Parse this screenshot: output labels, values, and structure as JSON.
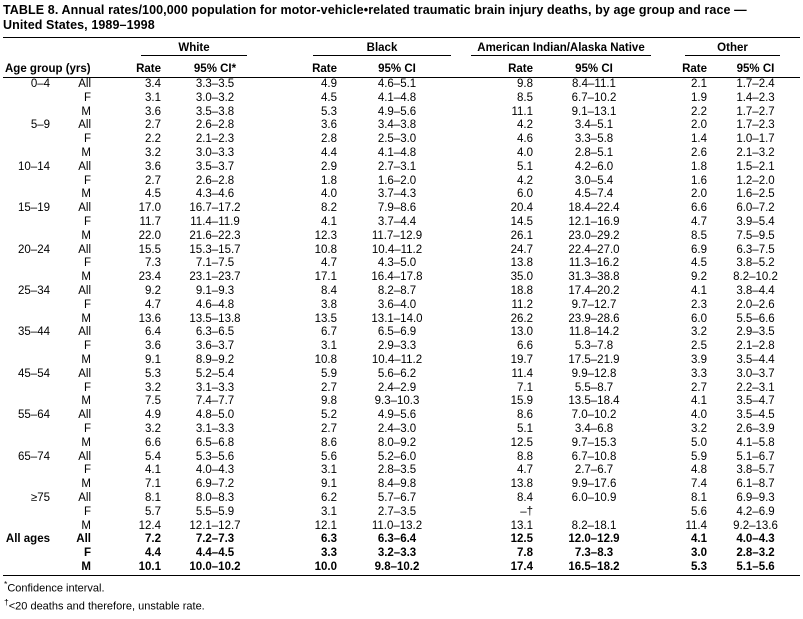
{
  "title": {
    "line1": "TABLE 8. Annual rates/100,000 population for motor-vehicle•related traumatic brain injury deaths, by age group and race —",
    "line2": "United States, 1989–1998"
  },
  "table": {
    "age_header": "Age group (yrs)",
    "col_groups": [
      {
        "label": "White",
        "sub": [
          "Rate",
          "95% CI*"
        ]
      },
      {
        "label": "Black",
        "sub": [
          "Rate",
          "95% CI"
        ]
      },
      {
        "label": "American Indian/Alaska Native",
        "sub": [
          "Rate",
          "95% CI"
        ]
      },
      {
        "label": "Other",
        "sub": [
          "Rate",
          "95% CI"
        ]
      }
    ],
    "rows": [
      {
        "age": "0–4",
        "sex": "All",
        "bold": false,
        "cells": [
          "3.4",
          "3.3–3.5",
          "4.9",
          "4.6–5.1",
          "9.8",
          "8.4–11.1",
          "2.1",
          "1.7–2.4"
        ]
      },
      {
        "age": "",
        "sex": "F",
        "bold": false,
        "cells": [
          "3.1",
          "3.0–3.2",
          "4.5",
          "4.1–4.8",
          "8.5",
          "6.7–10.2",
          "1.9",
          "1.4–2.3"
        ]
      },
      {
        "age": "",
        "sex": "M",
        "bold": false,
        "cells": [
          "3.6",
          "3.5–3.8",
          "5.3",
          "4.9–5.6",
          "11.1",
          "9.1–13.1",
          "2.2",
          "1.7–2.7"
        ]
      },
      {
        "age": "5–9",
        "sex": "All",
        "bold": false,
        "cells": [
          "2.7",
          "2.6–2.8",
          "3.6",
          "3.4–3.8",
          "4.2",
          "3.4–5.1",
          "2.0",
          "1.7–2.3"
        ]
      },
      {
        "age": "",
        "sex": "F",
        "bold": false,
        "cells": [
          "2.2",
          "2.1–2.3",
          "2.8",
          "2.5–3.0",
          "4.6",
          "3.3–5.8",
          "1.4",
          "1.0–1.7"
        ]
      },
      {
        "age": "",
        "sex": "M",
        "bold": false,
        "cells": [
          "3.2",
          "3.0–3.3",
          "4.4",
          "4.1–4.8",
          "4.0",
          "2.8–5.1",
          "2.6",
          "2.1–3.2"
        ]
      },
      {
        "age": "10–14",
        "sex": "All",
        "bold": false,
        "cells": [
          "3.6",
          "3.5–3.7",
          "2.9",
          "2.7–3.1",
          "5.1",
          "4.2–6.0",
          "1.8",
          "1.5–2.1"
        ]
      },
      {
        "age": "",
        "sex": "F",
        "bold": false,
        "cells": [
          "2.7",
          "2.6–2.8",
          "1.8",
          "1.6–2.0",
          "4.2",
          "3.0–5.4",
          "1.6",
          "1.2–2.0"
        ]
      },
      {
        "age": "",
        "sex": "M",
        "bold": false,
        "cells": [
          "4.5",
          "4.3–4.6",
          "4.0",
          "3.7–4.3",
          "6.0",
          "4.5–7.4",
          "2.0",
          "1.6–2.5"
        ]
      },
      {
        "age": "15–19",
        "sex": "All",
        "bold": false,
        "cells": [
          "17.0",
          "16.7–17.2",
          "8.2",
          "7.9–8.6",
          "20.4",
          "18.4–22.4",
          "6.6",
          "6.0–7.2"
        ]
      },
      {
        "age": "",
        "sex": "F",
        "bold": false,
        "cells": [
          "11.7",
          "11.4–11.9",
          "4.1",
          "3.7–4.4",
          "14.5",
          "12.1–16.9",
          "4.7",
          "3.9–5.4"
        ]
      },
      {
        "age": "",
        "sex": "M",
        "bold": false,
        "cells": [
          "22.0",
          "21.6–22.3",
          "12.3",
          "11.7–12.9",
          "26.1",
          "23.0–29.2",
          "8.5",
          "7.5–9.5"
        ]
      },
      {
        "age": "20–24",
        "sex": "All",
        "bold": false,
        "cells": [
          "15.5",
          "15.3–15.7",
          "10.8",
          "10.4–11.2",
          "24.7",
          "22.4–27.0",
          "6.9",
          "6.3–7.5"
        ]
      },
      {
        "age": "",
        "sex": "F",
        "bold": false,
        "cells": [
          "7.3",
          "7.1–7.5",
          "4.7",
          "4.3–5.0",
          "13.8",
          "11.3–16.2",
          "4.5",
          "3.8–5.2"
        ]
      },
      {
        "age": "",
        "sex": "M",
        "bold": false,
        "cells": [
          "23.4",
          "23.1–23.7",
          "17.1",
          "16.4–17.8",
          "35.0",
          "31.3–38.8",
          "9.2",
          "8.2–10.2"
        ]
      },
      {
        "age": "25–34",
        "sex": "All",
        "bold": false,
        "cells": [
          "9.2",
          "9.1–9.3",
          "8.4",
          "8.2–8.7",
          "18.8",
          "17.4–20.2",
          "4.1",
          "3.8–4.4"
        ]
      },
      {
        "age": "",
        "sex": "F",
        "bold": false,
        "cells": [
          "4.7",
          "4.6–4.8",
          "3.8",
          "3.6–4.0",
          "11.2",
          "9.7–12.7",
          "2.3",
          "2.0–2.6"
        ]
      },
      {
        "age": "",
        "sex": "M",
        "bold": false,
        "cells": [
          "13.6",
          "13.5–13.8",
          "13.5",
          "13.1–14.0",
          "26.2",
          "23.9–28.6",
          "6.0",
          "5.5–6.6"
        ]
      },
      {
        "age": "35–44",
        "sex": "All",
        "bold": false,
        "cells": [
          "6.4",
          "6.3–6.5",
          "6.7",
          "6.5–6.9",
          "13.0",
          "11.8–14.2",
          "3.2",
          "2.9–3.5"
        ]
      },
      {
        "age": "",
        "sex": "F",
        "bold": false,
        "cells": [
          "3.6",
          "3.6–3.7",
          "3.1",
          "2.9–3.3",
          "6.6",
          "5.3–7.8",
          "2.5",
          "2.1–2.8"
        ]
      },
      {
        "age": "",
        "sex": "M",
        "bold": false,
        "cells": [
          "9.1",
          "8.9–9.2",
          "10.8",
          "10.4–11.2",
          "19.7",
          "17.5–21.9",
          "3.9",
          "3.5–4.4"
        ]
      },
      {
        "age": "45–54",
        "sex": "All",
        "bold": false,
        "cells": [
          "5.3",
          "5.2–5.4",
          "5.9",
          "5.6–6.2",
          "11.4",
          "9.9–12.8",
          "3.3",
          "3.0–3.7"
        ]
      },
      {
        "age": "",
        "sex": "F",
        "bold": false,
        "cells": [
          "3.2",
          "3.1–3.3",
          "2.7",
          "2.4–2.9",
          "7.1",
          "5.5–8.7",
          "2.7",
          "2.2–3.1"
        ]
      },
      {
        "age": "",
        "sex": "M",
        "bold": false,
        "cells": [
          "7.5",
          "7.4–7.7",
          "9.8",
          "9.3–10.3",
          "15.9",
          "13.5–18.4",
          "4.1",
          "3.5–4.7"
        ]
      },
      {
        "age": "55–64",
        "sex": "All",
        "bold": false,
        "cells": [
          "4.9",
          "4.8–5.0",
          "5.2",
          "4.9–5.6",
          "8.6",
          "7.0–10.2",
          "4.0",
          "3.5–4.5"
        ]
      },
      {
        "age": "",
        "sex": "F",
        "bold": false,
        "cells": [
          "3.2",
          "3.1–3.3",
          "2.7",
          "2.4–3.0",
          "5.1",
          "3.4–6.8",
          "3.2",
          "2.6–3.9"
        ]
      },
      {
        "age": "",
        "sex": "M",
        "bold": false,
        "cells": [
          "6.6",
          "6.5–6.8",
          "8.6",
          "8.0–9.2",
          "12.5",
          "9.7–15.3",
          "5.0",
          "4.1–5.8"
        ]
      },
      {
        "age": "65–74",
        "sex": "All",
        "bold": false,
        "cells": [
          "5.4",
          "5.3–5.6",
          "5.6",
          "5.2–6.0",
          "8.8",
          "6.7–10.8",
          "5.9",
          "5.1–6.7"
        ]
      },
      {
        "age": "",
        "sex": "F",
        "bold": false,
        "cells": [
          "4.1",
          "4.0–4.3",
          "3.1",
          "2.8–3.5",
          "4.7",
          "2.7–6.7",
          "4.8",
          "3.8–5.7"
        ]
      },
      {
        "age": "",
        "sex": "M",
        "bold": false,
        "cells": [
          "7.1",
          "6.9–7.2",
          "9.1",
          "8.4–9.8",
          "13.8",
          "9.9–17.6",
          "7.4",
          "6.1–8.7"
        ]
      },
      {
        "age": "≥75",
        "sex": "All",
        "bold": false,
        "cells": [
          "8.1",
          "8.0–8.3",
          "6.2",
          "5.7–6.7",
          "8.4",
          "6.0–10.9",
          "8.1",
          "6.9–9.3"
        ]
      },
      {
        "age": "",
        "sex": "F",
        "bold": false,
        "cells": [
          "5.7",
          "5.5–5.9",
          "3.1",
          "2.7–3.5",
          "–†",
          "",
          "5.6",
          "4.2–6.9"
        ]
      },
      {
        "age": "",
        "sex": "M",
        "bold": false,
        "cells": [
          "12.4",
          "12.1–12.7",
          "12.1",
          "11.0–13.2",
          "13.1",
          "8.2–18.1",
          "11.4",
          "9.2–13.6"
        ]
      },
      {
        "age": "All ages",
        "sex": "All",
        "bold": true,
        "cells": [
          "7.2",
          "7.2–7.3",
          "6.3",
          "6.3–6.4",
          "12.5",
          "12.0–12.9",
          "4.1",
          "4.0–4.3"
        ]
      },
      {
        "age": "",
        "sex": "F",
        "bold": true,
        "cells": [
          "4.4",
          "4.4–4.5",
          "3.3",
          "3.2–3.3",
          "7.8",
          "7.3–8.3",
          "3.0",
          "2.8–3.2"
        ]
      },
      {
        "age": "",
        "sex": "M",
        "bold": true,
        "cells": [
          "10.1",
          "10.0–10.2",
          "10.0",
          "9.8–10.2",
          "17.4",
          "16.5–18.2",
          "5.3",
          "5.1–5.6"
        ]
      }
    ]
  },
  "footnotes": [
    {
      "symbol": "*",
      "text": "Confidence interval."
    },
    {
      "symbol": "†",
      "text": "<20 deaths and therefore, unstable rate."
    }
  ]
}
